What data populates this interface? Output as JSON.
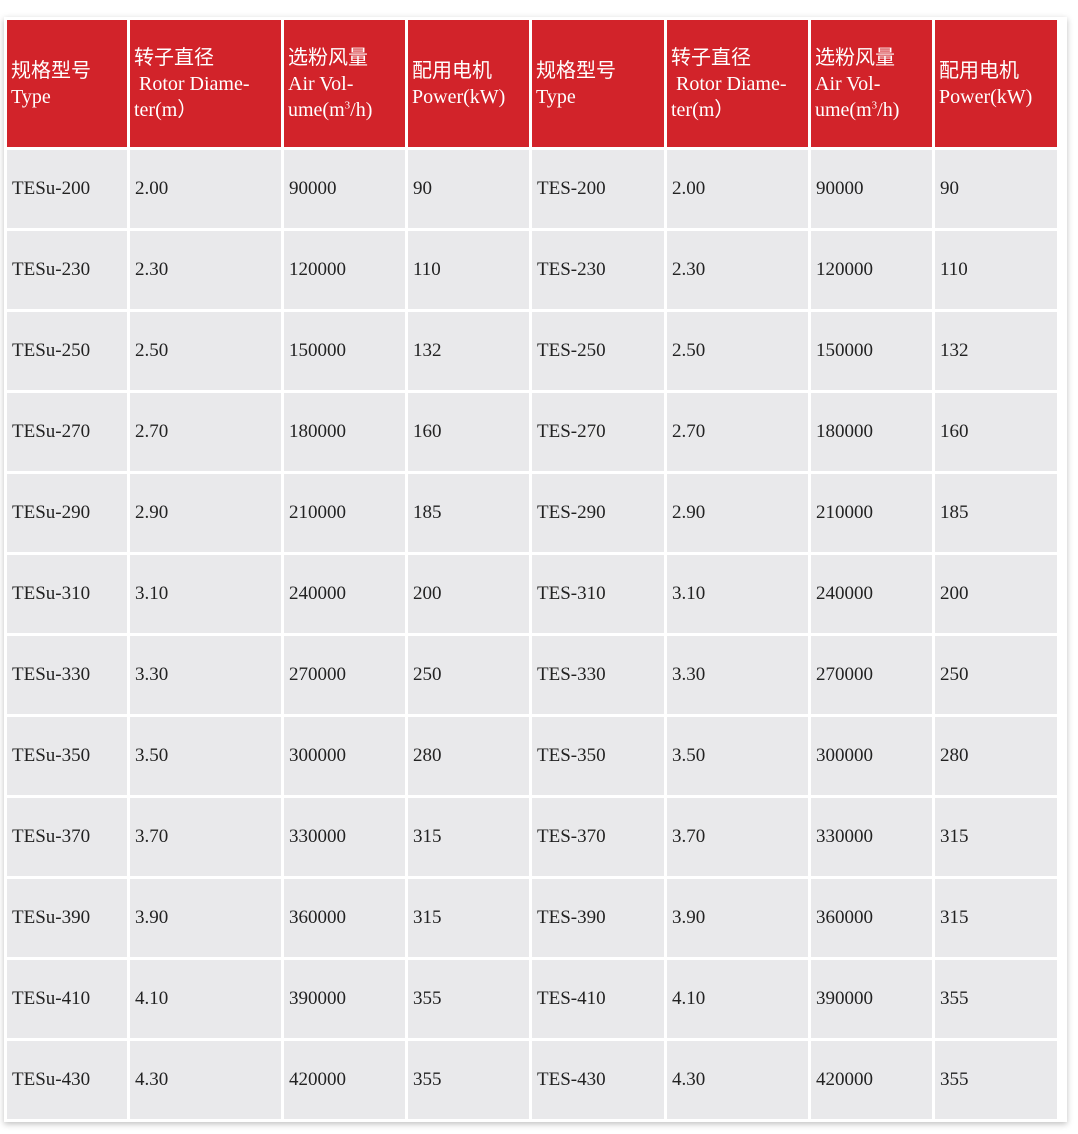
{
  "colors": {
    "header_bg": "#d2232a",
    "cell_bg": "#e9e9eb"
  },
  "headers": [
    {
      "zh": "规格型号",
      "en": "Type",
      "sup": "",
      "post": ""
    },
    {
      "zh": "转子直径",
      "en": " Rotor Diame-\nter(m）",
      "sup": "",
      "post": ""
    },
    {
      "zh": "选粉风量",
      "en": "Air Vol-\nume(m",
      "sup": "3",
      "post": "/h)"
    },
    {
      "zh": "配用电机",
      "en": "Power(kW)",
      "sup": "",
      "post": ""
    },
    {
      "zh": "规格型号",
      "en": "Type",
      "sup": "",
      "post": ""
    },
    {
      "zh": "转子直径",
      "en": " Rotor Diame-\nter(m）",
      "sup": "",
      "post": ""
    },
    {
      "zh": "选粉风量",
      "en": "Air Vol-\nume(m",
      "sup": "3",
      "post": "/h)"
    },
    {
      "zh": "配用电机",
      "en": "Power(kW)",
      "sup": "",
      "post": ""
    }
  ],
  "rows": [
    [
      "TESu-200",
      "2.00",
      "90000",
      "90",
      "TES-200",
      "2.00",
      "90000",
      "90"
    ],
    [
      "TESu-230",
      "2.30",
      "120000",
      "110",
      "TES-230",
      "2.30",
      "120000",
      "110"
    ],
    [
      "TESu-250",
      "2.50",
      "150000",
      "132",
      "TES-250",
      "2.50",
      "150000",
      "132"
    ],
    [
      "TESu-270",
      "2.70",
      "180000",
      "160",
      "TES-270",
      "2.70",
      "180000",
      "160"
    ],
    [
      "TESu-290",
      "2.90",
      "210000",
      "185",
      "TES-290",
      "2.90",
      "210000",
      "185"
    ],
    [
      "TESu-310",
      "3.10",
      "240000",
      "200",
      "TES-310",
      "3.10",
      "240000",
      "200"
    ],
    [
      "TESu-330",
      "3.30",
      "270000",
      "250",
      "TES-330",
      "3.30",
      "270000",
      "250"
    ],
    [
      "TESu-350",
      "3.50",
      "300000",
      "280",
      "TES-350",
      "3.50",
      "300000",
      "280"
    ],
    [
      "TESu-370",
      "3.70",
      "330000",
      "315",
      "TES-370",
      "3.70",
      "330000",
      "315"
    ],
    [
      "TESu-390",
      "3.90",
      "360000",
      "315",
      "TES-390",
      "3.90",
      "360000",
      "315"
    ],
    [
      "TESu-410",
      "4.10",
      "390000",
      "355",
      "TES-410",
      "4.10",
      "390000",
      "355"
    ],
    [
      "TESu-430",
      "4.30",
      "420000",
      "355",
      "TES-430",
      "4.30",
      "420000",
      "355"
    ]
  ]
}
